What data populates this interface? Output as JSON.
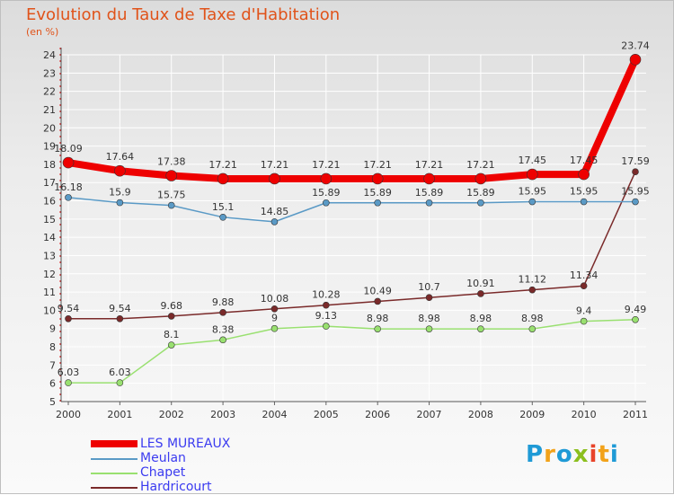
{
  "title": "Evolution du Taux de Taxe d'Habitation",
  "subtitle": "(en %)",
  "logo": {
    "text": "Proxiti",
    "letters": [
      "P",
      "r",
      "o",
      "x",
      "i",
      "t",
      "i"
    ],
    "colors": [
      "#1f9ad6",
      "#f2a21a",
      "#1f9ad6",
      "#8bbf1e",
      "#e8442a",
      "#f2a21a",
      "#1f9ad6"
    ]
  },
  "chart_data": {
    "type": "line",
    "title": "Evolution du Taux de Taxe d'Habitation",
    "ylabel": "(en %)",
    "xlabel": "",
    "x": [
      "2000",
      "2001",
      "2002",
      "2003",
      "2004",
      "2005",
      "2006",
      "2007",
      "2008",
      "2009",
      "2010",
      "2011"
    ],
    "ylim": [
      5,
      24
    ],
    "yticks": [
      5,
      6,
      7,
      8,
      9,
      10,
      11,
      12,
      13,
      14,
      15,
      16,
      17,
      18,
      19,
      20,
      21,
      22,
      23,
      24
    ],
    "grid": true,
    "legend": "bottom-left",
    "series": [
      {
        "name": "LES MUREAUX",
        "color": "#ee0000",
        "values": [
          18.09,
          17.64,
          17.38,
          17.21,
          17.21,
          17.21,
          17.21,
          17.21,
          17.21,
          17.45,
          17.45,
          23.74
        ],
        "labels": [
          "18.09",
          "17.64",
          "17.38",
          "17.21",
          "17.21",
          "17.21",
          "17.21",
          "17.21",
          "17.21",
          "17.45",
          "17.45",
          "23.74"
        ]
      },
      {
        "name": "Meulan",
        "color": "#5a9ac6",
        "values": [
          16.18,
          15.9,
          15.75,
          15.1,
          14.85,
          15.89,
          15.89,
          15.89,
          15.89,
          15.95,
          15.95,
          15.95
        ],
        "labels": [
          "16.18",
          "15.9",
          "15.75",
          "15.1",
          "14.85",
          "15.89",
          "15.89",
          "15.89",
          "15.89",
          "15.95",
          "15.95",
          "15.95"
        ]
      },
      {
        "name": "Chapet",
        "color": "#99e070",
        "values": [
          6.03,
          6.03,
          8.1,
          8.38,
          9,
          9.13,
          8.98,
          8.98,
          8.98,
          8.98,
          9.4,
          9.49
        ],
        "labels": [
          "6.03",
          "6.03",
          "8.1",
          "8.38",
          "9",
          "9.13",
          "8.98",
          "8.98",
          "8.98",
          "8.98",
          "9.4",
          "9.49"
        ]
      },
      {
        "name": "Hardricourt",
        "color": "#7a2a2a",
        "values": [
          9.54,
          9.54,
          9.68,
          9.88,
          10.08,
          10.28,
          10.49,
          10.7,
          10.91,
          11.12,
          11.34,
          17.59
        ],
        "labels": [
          "9.54",
          "9.54",
          "9.68",
          "9.88",
          "10.08",
          "10.28",
          "10.49",
          "10.7",
          "10.91",
          "11.12",
          "11.34",
          "17.59"
        ]
      }
    ]
  },
  "legend": {
    "items": [
      {
        "label": "LES MUREAUX",
        "color": "#ee0000"
      },
      {
        "label": "Meulan",
        "color": "#5a9ac6"
      },
      {
        "label": "Chapet",
        "color": "#99e070"
      },
      {
        "label": "Hardricourt",
        "color": "#7a2a2a"
      }
    ]
  }
}
